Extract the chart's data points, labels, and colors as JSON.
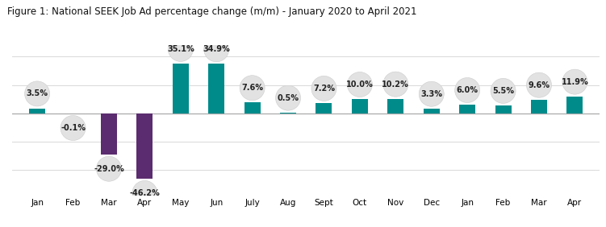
{
  "title": "Figure 1: National SEEK Job Ad percentage change (m/m) - January 2020 to April 2021",
  "categories": [
    "Jan",
    "Feb",
    "Mar",
    "Apr",
    "May",
    "Jun",
    "July",
    "Aug",
    "Sept",
    "Oct",
    "Nov",
    "Dec",
    "Jan",
    "Feb",
    "Mar",
    "Apr"
  ],
  "values": [
    3.5,
    -0.1,
    -29.0,
    -46.2,
    35.1,
    34.9,
    7.6,
    0.5,
    7.2,
    10.0,
    10.2,
    3.3,
    6.0,
    5.5,
    9.6,
    11.9
  ],
  "bar_colors": [
    "#008B8B",
    "#5b2c6f",
    "#5b2c6f",
    "#5b2c6f",
    "#008B8B",
    "#008B8B",
    "#008B8B",
    "#008B8B",
    "#008B8B",
    "#008B8B",
    "#008B8B",
    "#008B8B",
    "#008B8B",
    "#008B8B",
    "#008B8B",
    "#008B8B"
  ],
  "background_color": "#ffffff",
  "title_fontsize": 8.5,
  "label_fontsize": 7.0,
  "tick_fontsize": 7.5,
  "ylim": [
    -58,
    48
  ],
  "grid_color": "#d8d8d8",
  "badge_color": "#e2e2e2",
  "badge_edge_color": "#cccccc",
  "bar_width": 0.45
}
